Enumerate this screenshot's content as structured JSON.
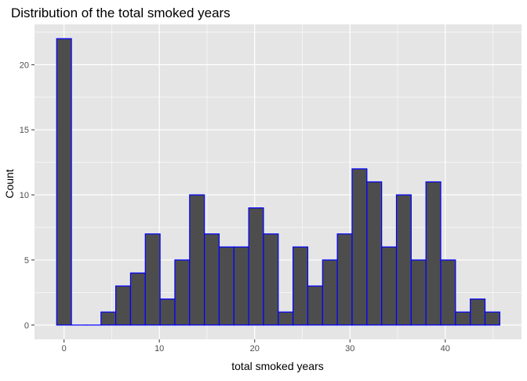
{
  "chart_data": {
    "type": "bar",
    "title": "Distribution of the total smoked years",
    "xlabel": "total smoked years",
    "ylabel": "Count",
    "bin_width": 1.55,
    "bins": [
      {
        "x": -0.0,
        "count": 22
      },
      {
        "x": 1.55,
        "count": 0
      },
      {
        "x": 3.1,
        "count": 0
      },
      {
        "x": 4.65,
        "count": 1
      },
      {
        "x": 6.2,
        "count": 3
      },
      {
        "x": 7.75,
        "count": 4
      },
      {
        "x": 9.3,
        "count": 7
      },
      {
        "x": 10.85,
        "count": 2
      },
      {
        "x": 12.4,
        "count": 5
      },
      {
        "x": 13.95,
        "count": 10
      },
      {
        "x": 15.5,
        "count": 7
      },
      {
        "x": 17.05,
        "count": 6
      },
      {
        "x": 18.6,
        "count": 6
      },
      {
        "x": 20.15,
        "count": 9
      },
      {
        "x": 21.7,
        "count": 7
      },
      {
        "x": 23.25,
        "count": 1
      },
      {
        "x": 24.8,
        "count": 6
      },
      {
        "x": 26.35,
        "count": 3
      },
      {
        "x": 27.9,
        "count": 5
      },
      {
        "x": 29.45,
        "count": 7
      },
      {
        "x": 31.0,
        "count": 12
      },
      {
        "x": 32.55,
        "count": 11
      },
      {
        "x": 34.1,
        "count": 6
      },
      {
        "x": 35.65,
        "count": 10
      },
      {
        "x": 37.2,
        "count": 5
      },
      {
        "x": 38.75,
        "count": 11
      },
      {
        "x": 40.3,
        "count": 5
      },
      {
        "x": 41.85,
        "count": 1
      },
      {
        "x": 43.4,
        "count": 2
      },
      {
        "x": 44.95,
        "count": 1
      }
    ],
    "xlim": [
      -3.1,
      48.0
    ],
    "ylim": [
      -1.1,
      23.1
    ],
    "x_ticks": [
      0,
      10,
      20,
      30,
      40
    ],
    "y_ticks": [
      0,
      5,
      10,
      15,
      20
    ],
    "grid": true,
    "colors": {
      "panel": "#e5e5e5",
      "grid": "#ffffff",
      "bar_fill": "#4d4d4d",
      "bar_stroke": "#0000ff",
      "axis_text": "#4d4d4d",
      "title": "#000000"
    }
  }
}
